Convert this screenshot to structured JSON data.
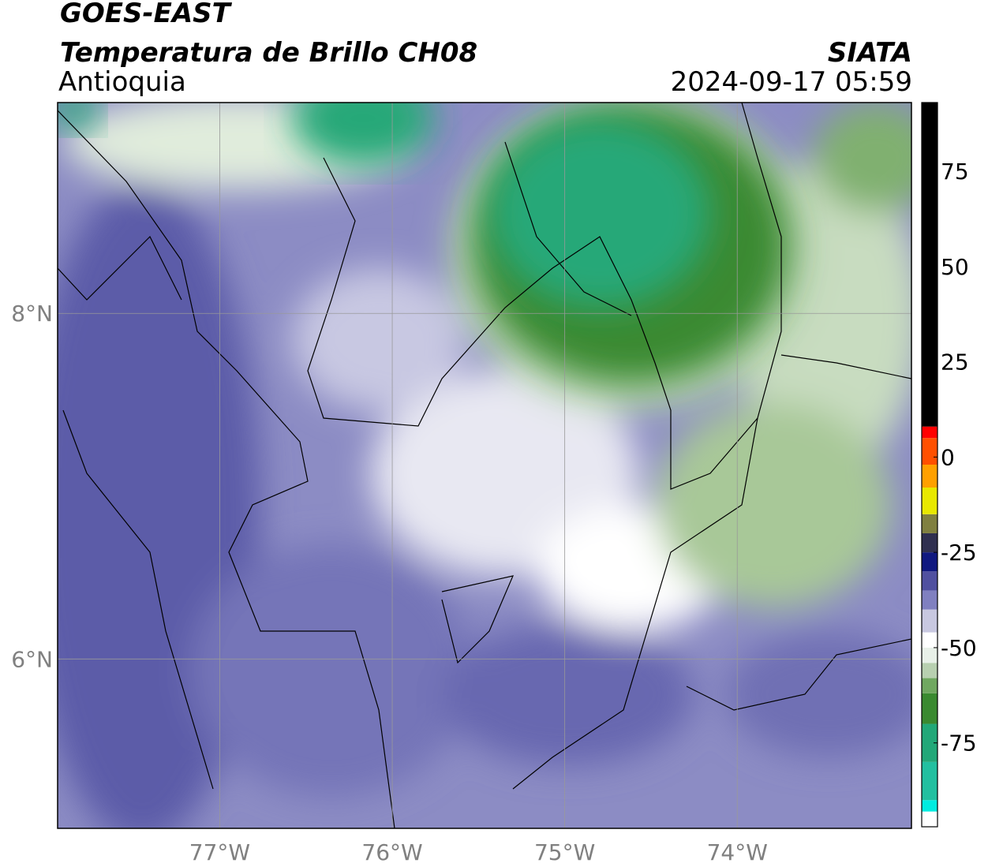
{
  "header": {
    "title": "GOES-EAST",
    "subtitle": "Temperatura de Brillo CH08",
    "region": "Antioquia",
    "source": "SIATA",
    "datetime": "2024-09-17 05:59"
  },
  "map": {
    "xlim": [
      -77.94,
      -72.99
    ],
    "ylim": [
      5.02,
      9.22
    ],
    "xticks": [
      {
        "value": -77,
        "label": "77°W"
      },
      {
        "value": -76,
        "label": "76°W"
      },
      {
        "value": -75,
        "label": "75°W"
      },
      {
        "value": -74,
        "label": "74°W"
      }
    ],
    "yticks": [
      {
        "value": 8,
        "label": "8°N"
      },
      {
        "value": 6,
        "label": "6°N"
      }
    ],
    "grid": true
  },
  "colorbar": {
    "vlim": [
      -97,
      93
    ],
    "ticks": [
      75,
      50,
      25,
      0,
      -25,
      -50,
      -75
    ],
    "stops": [
      {
        "value": -97,
        "color": "#ffffff"
      },
      {
        "value": -93,
        "color": "#00ece0"
      },
      {
        "value": -90,
        "color": "#22c0a0"
      },
      {
        "value": -80,
        "color": "#22a878"
      },
      {
        "value": -70,
        "color": "#3a8a30"
      },
      {
        "value": -62,
        "color": "#70a860"
      },
      {
        "value": -58,
        "color": "#b8d0b0"
      },
      {
        "value": -54,
        "color": "#e8f0e8"
      },
      {
        "value": -50,
        "color": "#ffffff"
      },
      {
        "value": -46,
        "color": "#c8c8e0"
      },
      {
        "value": -40,
        "color": "#8080c0"
      },
      {
        "value": -35,
        "color": "#5050a0"
      },
      {
        "value": -30,
        "color": "#101880"
      },
      {
        "value": -25,
        "color": "#303050"
      },
      {
        "value": -20,
        "color": "#808040"
      },
      {
        "value": -15,
        "color": "#e8e800"
      },
      {
        "value": -8,
        "color": "#ffa000"
      },
      {
        "value": -2,
        "color": "#ff5000"
      },
      {
        "value": 5,
        "color": "#ff0000"
      },
      {
        "value": 8,
        "color": "#000000"
      }
    ]
  }
}
